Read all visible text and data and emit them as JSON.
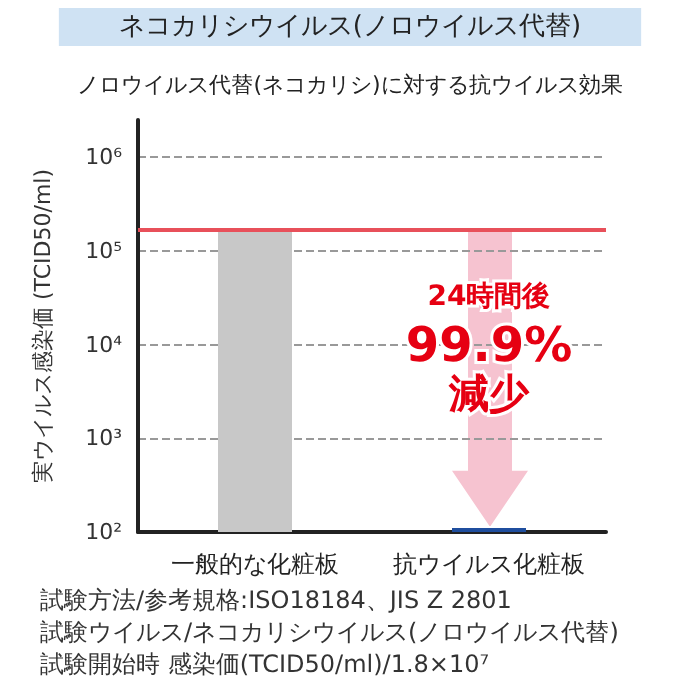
{
  "chart_data": {
    "type": "bar",
    "title": "ネコカリシウイルス(ノロウイルス代替)",
    "subtitle": "ノロウイルス代替(ネコカリシ)に対する抗ウイルス効果",
    "ylabel": "実ウイルス感染価 (TCID50/ml)",
    "categories": [
      "一般的な化粧板",
      "抗ウイルス化粧板"
    ],
    "values": [
      160000,
      110
    ],
    "colors": [
      "#c8c8c8",
      "#1f4e9e"
    ],
    "log": true,
    "ylim": [
      100,
      2500000
    ],
    "yticks": [
      {
        "value": 100,
        "label": "10²"
      },
      {
        "value": 1000,
        "label": "10³"
      },
      {
        "value": 10000,
        "label": "10⁴"
      },
      {
        "value": 100000,
        "label": "10⁵"
      },
      {
        "value": 1000000,
        "label": "10⁶"
      }
    ],
    "grid": "y",
    "ref_lines": [
      {
        "axis": "y",
        "value": 170000,
        "color": "#e8505a"
      }
    ],
    "annotations": [
      "24時間後",
      "99.9%",
      "減少",
      "試験方法/参考規格:ISO18184、JIS Z 2801",
      "試験ウイルス/ネコカリシウイルス(ノロウイルス代替)",
      "試験開始時 感染価(TCID50/ml)/1.8×10⁷"
    ]
  }
}
